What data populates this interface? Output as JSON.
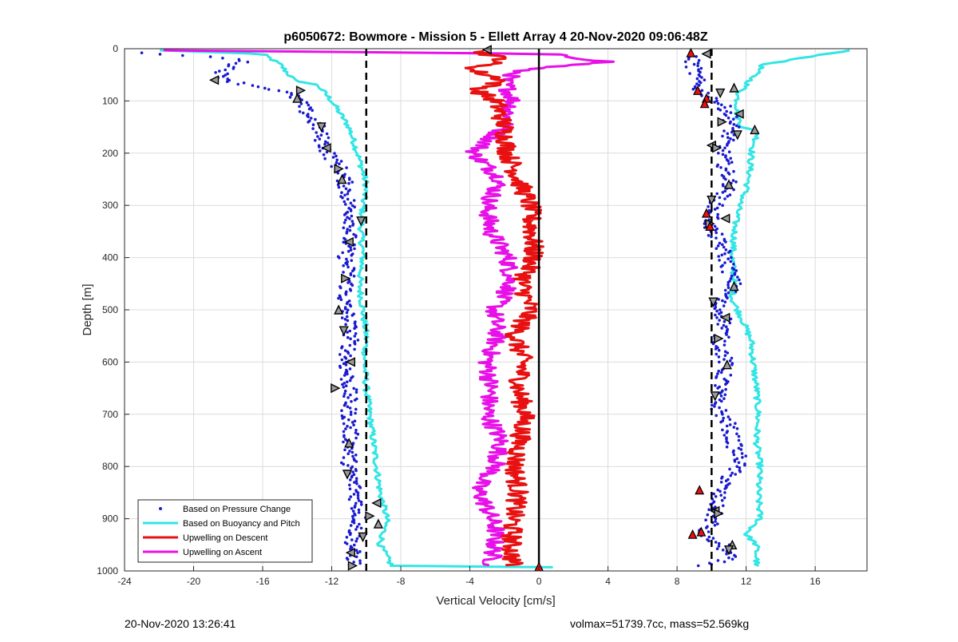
{
  "chart_data": {
    "type": "scatter",
    "title": "p6050672: Bowmore - Mission 5 - Ellett Array 4 20-Nov-2020 09:06:48Z",
    "xlabel": "Vertical Velocity [cm/s]",
    "ylabel": "Depth [m]",
    "xlim": [
      -24,
      19
    ],
    "ylim": [
      0,
      1000
    ],
    "y_reversed": true,
    "grid": true,
    "legend_position": "bottom-left",
    "x_ticks": [
      -24,
      -20,
      -16,
      -12,
      -8,
      -4,
      0,
      4,
      8,
      12,
      16
    ],
    "y_ticks": [
      0,
      100,
      200,
      300,
      400,
      500,
      600,
      700,
      800,
      900,
      1000
    ],
    "reference_lines": [
      {
        "x": -10,
        "style": "dashed"
      },
      {
        "x": 10,
        "style": "dashed"
      },
      {
        "x": 0,
        "style": "solid"
      }
    ],
    "series": [
      {
        "name": "Based on Pressure Change",
        "marker": "dot",
        "color": "#1a1ad0",
        "descent": [
          [
            -23.2,
            8
          ],
          [
            -17,
            20
          ],
          [
            -18.5,
            50
          ],
          [
            -17.5,
            65
          ],
          [
            -15,
            80
          ],
          [
            -14,
            95
          ],
          [
            -13.5,
            120
          ],
          [
            -12.8,
            150
          ],
          [
            -12.5,
            180
          ],
          [
            -12.2,
            200
          ],
          [
            -11.5,
            230
          ],
          [
            -11.2,
            260
          ],
          [
            -11,
            300
          ],
          [
            -10.8,
            330
          ],
          [
            -11,
            360
          ],
          [
            -11.2,
            400
          ],
          [
            -11,
            440
          ],
          [
            -11.3,
            480
          ],
          [
            -11,
            520
          ],
          [
            -10.9,
            560
          ],
          [
            -11.2,
            600
          ],
          [
            -11,
            650
          ],
          [
            -11,
            700
          ],
          [
            -10.9,
            750
          ],
          [
            -11,
            800
          ],
          [
            -10.6,
            850
          ],
          [
            -10.4,
            900
          ],
          [
            -10.8,
            940
          ],
          [
            -10.8,
            970
          ],
          [
            -10.6,
            990
          ]
        ],
        "ascent": [
          [
            8.8,
            15
          ],
          [
            9.3,
            80
          ],
          [
            10.3,
            100
          ],
          [
            11,
            120
          ],
          [
            11.2,
            150
          ],
          [
            10.6,
            190
          ],
          [
            10.8,
            230
          ],
          [
            11.1,
            260
          ],
          [
            10.2,
            300
          ],
          [
            9.9,
            340
          ],
          [
            10.6,
            380
          ],
          [
            11,
            420
          ],
          [
            11.3,
            455
          ],
          [
            10.3,
            490
          ],
          [
            10.8,
            520
          ],
          [
            10.5,
            560
          ],
          [
            10.8,
            600
          ],
          [
            10.6,
            640
          ],
          [
            10.2,
            680
          ],
          [
            11,
            720
          ],
          [
            11.3,
            760
          ],
          [
            11.7,
            790
          ],
          [
            11,
            820
          ],
          [
            10.4,
            850
          ],
          [
            10.2,
            880
          ],
          [
            10,
            910
          ],
          [
            9.2,
            930
          ],
          [
            10.6,
            950
          ],
          [
            11,
            975
          ],
          [
            9.5,
            992
          ]
        ]
      },
      {
        "name": "Based on Buoyancy and Pitch",
        "marker": "line",
        "color": "#33e5e5",
        "descent": [
          [
            -22,
            3
          ],
          [
            -16,
            10
          ],
          [
            -15,
            30
          ],
          [
            -14.2,
            60
          ],
          [
            -12.8,
            70
          ],
          [
            -12,
            100
          ],
          [
            -11,
            150
          ],
          [
            -10.5,
            200
          ],
          [
            -10,
            260
          ],
          [
            -10.2,
            300
          ],
          [
            -10.3,
            350
          ],
          [
            -10.2,
            400
          ],
          [
            -10.4,
            450
          ],
          [
            -10.2,
            500
          ],
          [
            -10,
            550
          ],
          [
            -10.1,
            600
          ],
          [
            -10,
            650
          ],
          [
            -9.8,
            700
          ],
          [
            -9.6,
            750
          ],
          [
            -9.4,
            800
          ],
          [
            -9.2,
            850
          ],
          [
            -8.8,
            900
          ],
          [
            -9.2,
            950
          ],
          [
            -8.5,
            992
          ],
          [
            10,
            994
          ]
        ],
        "ascent": [
          [
            18,
            3
          ],
          [
            13,
            30
          ],
          [
            11.5,
            90
          ],
          [
            11.5,
            130
          ],
          [
            11.8,
            150
          ],
          [
            12.7,
            160
          ],
          [
            12.3,
            200
          ],
          [
            12.2,
            240
          ],
          [
            12,
            270
          ],
          [
            11.6,
            300
          ],
          [
            11.4,
            330
          ],
          [
            11.3,
            360
          ],
          [
            11.2,
            400
          ],
          [
            11.3,
            450
          ],
          [
            11.2,
            480
          ],
          [
            11.5,
            500
          ],
          [
            11.8,
            520
          ],
          [
            12.3,
            560
          ],
          [
            12.4,
            600
          ],
          [
            12.6,
            650
          ],
          [
            12.7,
            700
          ],
          [
            12.6,
            750
          ],
          [
            12.8,
            800
          ],
          [
            12.7,
            850
          ],
          [
            12.8,
            900
          ],
          [
            12,
            930
          ],
          [
            12.6,
            950
          ],
          [
            12.6,
            992
          ]
        ]
      },
      {
        "name": "Upwelling on Descent",
        "marker": "line",
        "color": "#e81010",
        "values": [
          [
            -3.5,
            5
          ],
          [
            -2,
            20
          ],
          [
            -4,
            40
          ],
          [
            -2,
            60
          ],
          [
            -3.6,
            80
          ],
          [
            -2.5,
            100
          ],
          [
            -2,
            150
          ],
          [
            -1.8,
            200
          ],
          [
            -1.2,
            250
          ],
          [
            -0.5,
            300
          ],
          [
            -0.4,
            350
          ],
          [
            -0.3,
            400
          ],
          [
            -1,
            450
          ],
          [
            -0.5,
            500
          ],
          [
            -1.4,
            550
          ],
          [
            -0.9,
            600
          ],
          [
            -1.2,
            650
          ],
          [
            -0.8,
            700
          ],
          [
            -1.1,
            750
          ],
          [
            -1.4,
            800
          ],
          [
            -1.2,
            850
          ],
          [
            -1.5,
            900
          ],
          [
            -1.6,
            950
          ],
          [
            -1.5,
            990
          ]
        ]
      },
      {
        "name": "Upwelling on Ascent",
        "marker": "line",
        "color": "#e810e8",
        "values": [
          [
            -22,
            3
          ],
          [
            0.5,
            10
          ],
          [
            4,
            25
          ],
          [
            -1,
            40
          ],
          [
            -2,
            60
          ],
          [
            -1.5,
            100
          ],
          [
            -2,
            150
          ],
          [
            -3.8,
            200
          ],
          [
            -2.2,
            250
          ],
          [
            -3,
            300
          ],
          [
            -2.8,
            350
          ],
          [
            -1.8,
            400
          ],
          [
            -1.6,
            450
          ],
          [
            -2.6,
            500
          ],
          [
            -2.4,
            550
          ],
          [
            -3,
            600
          ],
          [
            -2.8,
            650
          ],
          [
            -3,
            700
          ],
          [
            -2.2,
            750
          ],
          [
            -2.5,
            800
          ],
          [
            -3.6,
            840
          ],
          [
            -3,
            880
          ],
          [
            -2.5,
            920
          ],
          [
            -2.6,
            960
          ],
          [
            -2.8,
            990
          ]
        ]
      }
    ],
    "turning_markers": {
      "descent_x": [
        -18.8,
        -13.8,
        -14,
        -12.6,
        -12.3,
        -11.6,
        -11.4,
        -10.3,
        -11,
        -11.2,
        -11.6,
        -11.3,
        -10.9,
        -11.8,
        -11,
        -11.1,
        -9.4,
        -9.8,
        -9.3,
        -10.2,
        -10.9,
        -10.8
      ],
      "descent_y": [
        60,
        80,
        95,
        150,
        190,
        230,
        250,
        330,
        370,
        440,
        500,
        540,
        600,
        650,
        755,
        815,
        870,
        895,
        910,
        935,
        965,
        990
      ],
      "ascent_x": [
        11.3,
        10.5,
        11.6,
        10.6,
        12.5,
        11.5,
        10,
        10.3,
        11,
        10,
        10.8,
        9.9,
        11.3,
        10.1,
        10.8,
        10.4,
        10.9,
        10.2,
        10.2,
        10.4,
        11.2,
        11,
        9.7
      ],
      "ascent_y": [
        75,
        85,
        125,
        140,
        155,
        165,
        185,
        190,
        260,
        290,
        325,
        335,
        455,
        485,
        515,
        555,
        605,
        665,
        885,
        890,
        950,
        960,
        10
      ],
      "red_points_x": [
        8.8,
        9.2,
        9.7,
        9.6,
        9.7,
        9.9,
        9.3,
        9.4,
        8.9
      ],
      "red_points_y": [
        8,
        80,
        95,
        105,
        315,
        340,
        845,
        925,
        930
      ],
      "at_zero_y": 992
    }
  },
  "footer": {
    "left": "20-Nov-2020 13:26:41",
    "right": "volmax=51739.7cc, mass=52.569kg"
  }
}
